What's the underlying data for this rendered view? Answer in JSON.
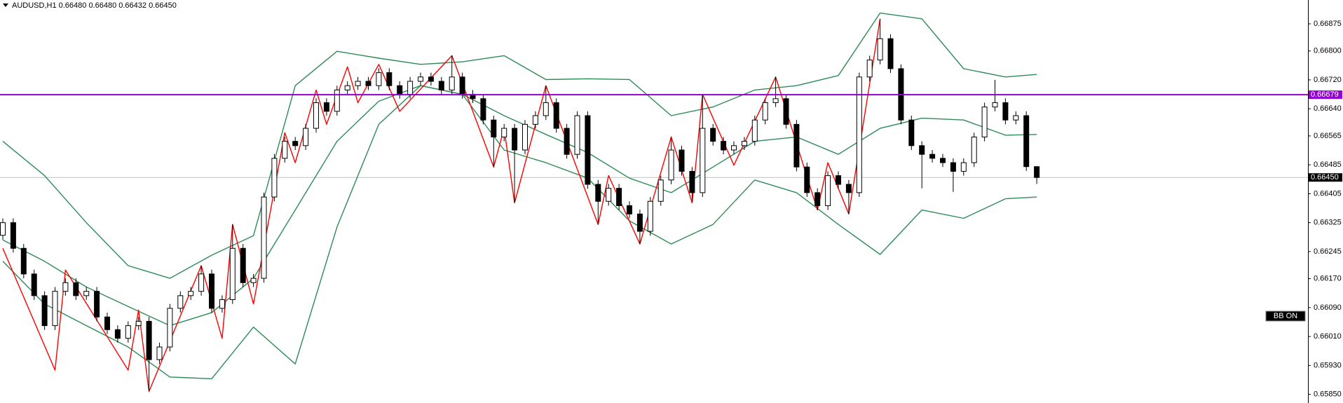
{
  "chart_data": {
    "type": "candlestick",
    "title": "AUDUSD,H1  0.66480 0.66480 0.66432 0.66450",
    "open": [
      0.6629,
      0.66325,
      0.66254,
      0.66183,
      0.66123,
      0.6604,
      0.66135,
      0.66159,
      0.66123,
      0.66135,
      0.66064,
      0.66029,
      0.66005,
      0.6604,
      0.66052,
      0.65946,
      0.65981,
      0.66088,
      0.66123,
      0.66135,
      0.66183,
      0.66088,
      0.66112,
      0.66254,
      0.66159,
      0.66171,
      0.66396,
      0.66503,
      0.6655,
      0.66538,
      0.66586,
      0.66657,
      0.66633,
      0.66692,
      0.66704,
      0.66716,
      0.66704,
      0.6674,
      0.66704,
      0.6668,
      0.66716,
      0.66728,
      0.66716,
      0.66692,
      0.66728,
      0.6668,
      0.66668,
      0.66609,
      0.66562,
      0.66586,
      0.66526,
      0.66597,
      0.66621,
      0.66657,
      0.66586,
      0.66514,
      0.66621,
      0.66431,
      0.66384,
      0.6642,
      0.66372,
      0.66349,
      0.66301,
      0.66384,
      0.66443,
      0.66526,
      0.66467,
      0.66408,
      0.66586,
      0.6655,
      0.66526,
      0.66538,
      0.6655,
      0.66609,
      0.66657,
      0.66668,
      0.66597,
      0.66479,
      0.66408,
      0.66372,
      0.66455,
      0.66431,
      0.66408,
      0.66728,
      0.66775,
      0.66834,
      0.66751,
      0.66609,
      0.66538,
      0.66514,
      0.66503,
      0.66491,
      0.66467,
      0.66491,
      0.66562,
      0.66645,
      0.66657,
      0.66609,
      0.66621,
      0.6648
    ],
    "high": [
      0.66337,
      0.66337,
      0.66266,
      0.66195,
      0.66135,
      0.66147,
      0.66171,
      0.66171,
      0.66147,
      0.66147,
      0.66076,
      0.66041,
      0.66052,
      0.66064,
      0.66064,
      0.65993,
      0.661,
      0.66135,
      0.66147,
      0.66206,
      0.66195,
      0.66124,
      0.6632,
      0.66266,
      0.66183,
      0.66408,
      0.66515,
      0.66562,
      0.66562,
      0.66598,
      0.66669,
      0.66669,
      0.66704,
      0.66716,
      0.66728,
      0.66728,
      0.66752,
      0.66752,
      0.66716,
      0.66728,
      0.6674,
      0.6674,
      0.66728,
      0.66787,
      0.6674,
      0.66692,
      0.6668,
      0.66621,
      0.66598,
      0.66598,
      0.66609,
      0.66633,
      0.66704,
      0.66669,
      0.66598,
      0.66633,
      0.66633,
      0.66443,
      0.66432,
      0.66432,
      0.66384,
      0.66361,
      0.66396,
      0.66455,
      0.66562,
      0.66538,
      0.66479,
      0.6668,
      0.66598,
      0.66562,
      0.6655,
      0.66562,
      0.66621,
      0.66669,
      0.66728,
      0.6668,
      0.66609,
      0.66491,
      0.6642,
      0.66467,
      0.66467,
      0.66443,
      0.6674,
      0.66787,
      0.66889,
      0.66846,
      0.66763,
      0.66621,
      0.6655,
      0.66526,
      0.66515,
      0.66503,
      0.66503,
      0.66574,
      0.66657,
      0.6672,
      0.66669,
      0.66633,
      0.66633,
      0.6648
    ],
    "low": [
      0.66278,
      0.66242,
      0.66171,
      0.66111,
      0.66028,
      0.66028,
      0.66123,
      0.66111,
      0.66111,
      0.66052,
      0.66017,
      0.65993,
      0.65993,
      0.66028,
      0.6586,
      0.65934,
      0.65969,
      0.66076,
      0.66111,
      0.66123,
      0.66076,
      0.66076,
      0.661,
      0.66147,
      0.66147,
      0.66159,
      0.66384,
      0.66491,
      0.66526,
      0.66526,
      0.66574,
      0.66621,
      0.66621,
      0.6668,
      0.66692,
      0.66692,
      0.66692,
      0.66692,
      0.66668,
      0.66668,
      0.66704,
      0.66704,
      0.6668,
      0.6668,
      0.66668,
      0.66656,
      0.66597,
      0.6648,
      0.6655,
      0.6638,
      0.66514,
      0.66585,
      0.66609,
      0.66574,
      0.66502,
      0.66502,
      0.66419,
      0.6632,
      0.66372,
      0.6636,
      0.66337,
      0.66266,
      0.66289,
      0.66372,
      0.66431,
      0.66455,
      0.6638,
      0.66396,
      0.66538,
      0.66514,
      0.66514,
      0.66526,
      0.66538,
      0.66597,
      0.66645,
      0.66585,
      0.66467,
      0.66396,
      0.6636,
      0.6636,
      0.66419,
      0.66349,
      0.66396,
      0.66716,
      0.66763,
      0.66739,
      0.66597,
      0.66526,
      0.6642,
      0.66491,
      0.66479,
      0.6641,
      0.66455,
      0.66479,
      0.6655,
      0.66633,
      0.66597,
      0.66597,
      0.66468,
      0.66432
    ],
    "close": [
      0.66325,
      0.66254,
      0.66183,
      0.66123,
      0.6604,
      0.66135,
      0.66159,
      0.66123,
      0.66135,
      0.66064,
      0.66029,
      0.66005,
      0.6604,
      0.66052,
      0.65946,
      0.65981,
      0.66088,
      0.66123,
      0.66135,
      0.66183,
      0.66088,
      0.66112,
      0.66254,
      0.66159,
      0.66171,
      0.66396,
      0.66503,
      0.6655,
      0.66538,
      0.66586,
      0.66657,
      0.66633,
      0.66692,
      0.66704,
      0.66716,
      0.66704,
      0.6674,
      0.66704,
      0.6668,
      0.66716,
      0.66728,
      0.66716,
      0.66692,
      0.66728,
      0.6668,
      0.66668,
      0.66609,
      0.66562,
      0.66586,
      0.66526,
      0.66597,
      0.66621,
      0.66657,
      0.66586,
      0.66514,
      0.66621,
      0.66431,
      0.66384,
      0.6642,
      0.66372,
      0.66349,
      0.66301,
      0.66384,
      0.66443,
      0.66526,
      0.66467,
      0.66408,
      0.66586,
      0.6655,
      0.66526,
      0.66538,
      0.6655,
      0.66609,
      0.66657,
      0.66668,
      0.66597,
      0.66479,
      0.66408,
      0.66372,
      0.66455,
      0.66431,
      0.66408,
      0.66728,
      0.66775,
      0.66834,
      0.66751,
      0.66609,
      0.66538,
      0.66514,
      0.66503,
      0.66491,
      0.66467,
      0.66491,
      0.66562,
      0.66645,
      0.66657,
      0.66609,
      0.66621,
      0.6648,
      0.6645
    ],
    "up_color": "#ffffff",
    "down_color": "#000000",
    "outline_color": "#000000",
    "series": [
      {
        "color": "#2e8b57",
        "x": [
          0,
          4,
          8,
          12,
          16,
          20,
          24,
          28,
          32,
          36,
          40,
          44,
          48,
          52,
          56,
          60,
          64,
          68,
          72,
          76,
          80,
          84,
          88,
          92,
          96,
          99
        ],
        "values": [
          0.6655,
          0.66455,
          0.66325,
          0.66206,
          0.66171,
          0.66235,
          0.66289,
          0.66704,
          0.66799,
          0.6678,
          0.66763,
          0.6677,
          0.66787,
          0.66721,
          0.66723,
          0.66721,
          0.66621,
          0.66645,
          0.66692,
          0.66704,
          0.66732,
          0.66905,
          0.66889,
          0.66751,
          0.66728,
          0.66735
        ]
      },
      {
        "color": "#2e8b57",
        "x": [
          0,
          4,
          8,
          12,
          16,
          20,
          24,
          28,
          32,
          36,
          40,
          44,
          48,
          52,
          56,
          60,
          64,
          68,
          72,
          76,
          80,
          84,
          88,
          92,
          96,
          99
        ],
        "values": [
          0.66277,
          0.66218,
          0.66147,
          0.66093,
          0.6604,
          0.66076,
          0.66171,
          0.6636,
          0.6655,
          0.66661,
          0.66704,
          0.6668,
          0.66621,
          0.66569,
          0.66519,
          0.66448,
          0.66408,
          0.66479,
          0.6655,
          0.66562,
          0.66514,
          0.66586,
          0.66614,
          0.66609,
          0.66567,
          0.66569
        ]
      },
      {
        "color": "#2e8b57",
        "x": [
          0,
          4,
          8,
          12,
          16,
          20,
          24,
          28,
          32,
          36,
          40,
          44,
          48,
          52,
          56,
          60,
          64,
          68,
          72,
          76,
          80,
          84,
          88,
          92,
          96,
          99
        ],
        "values": [
          0.66218,
          0.661,
          0.6604,
          0.65981,
          0.65898,
          0.65893,
          0.66036,
          0.65934,
          0.66313,
          0.66597,
          0.66704,
          0.6668,
          0.66526,
          0.66491,
          0.66448,
          0.6633,
          0.66266,
          0.6632,
          0.66443,
          0.66408,
          0.6632,
          0.66237,
          0.6636,
          0.66337,
          0.66391,
          0.66396
        ]
      },
      {
        "color": "#ff0000",
        "x": [
          0,
          5,
          6,
          12,
          13,
          14,
          19,
          21,
          22,
          24,
          27,
          28,
          30,
          31,
          33,
          34,
          36,
          38,
          43,
          47,
          48,
          49,
          52,
          57,
          58,
          61,
          64,
          66,
          67,
          70,
          74,
          78,
          79,
          81,
          84
        ],
        "values": [
          0.66254,
          0.65917,
          0.66194,
          0.65917,
          0.66083,
          0.65858,
          0.66206,
          0.66005,
          0.6632,
          0.661,
          0.66574,
          0.66491,
          0.66692,
          0.66597,
          0.66756,
          0.66657,
          0.66763,
          0.66633,
          0.66787,
          0.66479,
          0.66586,
          0.6638,
          0.66704,
          0.6632,
          0.66455,
          0.66266,
          0.66562,
          0.6638,
          0.6668,
          0.66484,
          0.66728,
          0.6636,
          0.66491,
          0.66349,
          0.66889
        ]
      }
    ],
    "ylim": [
      0.65826,
      0.66941
    ],
    "yticks": [
      0.66875,
      {
        "value": 0.668,
        "label": "0.66800"
      },
      {
        "value": 0.6672,
        "label": "0.66720"
      },
      {
        "value": 0.6664,
        "label": "0.66640"
      },
      0.66565,
      0.66485,
      0.66405,
      0.66325,
      0.66245,
      {
        "value": 0.6617,
        "label": "0.66170"
      },
      {
        "value": 0.6609,
        "label": "0.66090"
      },
      {
        "value": 0.6601,
        "label": "0.66010"
      },
      {
        "value": 0.6593,
        "label": "0.65930"
      },
      {
        "value": 0.6585,
        "label": "0.65850"
      }
    ],
    "hline": {
      "value": 0.66679,
      "color": "#9400d3"
    },
    "current_price": {
      "value": 0.6645,
      "label": "0.66450"
    },
    "annotation": "BB ON"
  }
}
